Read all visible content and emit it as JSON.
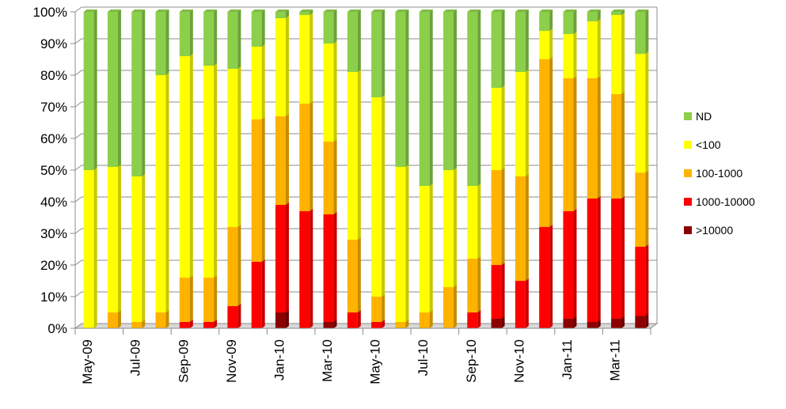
{
  "chart_data": {
    "type": "bar",
    "stacked": true,
    "normalized": true,
    "categories": [
      "May-09",
      "Jun-09",
      "Jul-09",
      "Aug-09",
      "Sep-09",
      "Oct-09",
      "Nov-09",
      "Dec-09",
      "Jan-10",
      "Feb-10",
      "Mar-10",
      "Apr-10",
      "May-10",
      "Jun-10",
      "Jul-10",
      "Aug-10",
      "Sep-10",
      "Oct-10",
      "Nov-10",
      "Dec-10",
      "Jan-11",
      "Feb-11",
      "Mar-11",
      "Apr-11"
    ],
    "x_tick_labels": [
      "May-09",
      "Jul-09",
      "Sep-09",
      "Nov-09",
      "Jan-10",
      "Mar-10",
      "May-10",
      "Jul-10",
      "Sep-10",
      "Nov-10",
      "Jan-11",
      "Mar-11"
    ],
    "y_tick_labels": [
      "0%",
      "10%",
      "20%",
      "30%",
      "40%",
      "50%",
      "60%",
      "70%",
      "80%",
      "90%",
      "100%"
    ],
    "ylim": [
      0,
      100
    ],
    "grid": true,
    "legend_position": "right",
    "series": [
      {
        "name": ">10000",
        "color": "#8B0000",
        "values": [
          0,
          0,
          0,
          0,
          0,
          0,
          0,
          0,
          5,
          0,
          2,
          0,
          0,
          0,
          0,
          0,
          0,
          3,
          0,
          0,
          3,
          2,
          3,
          5
        ]
      },
      {
        "name": "1000-10000",
        "color": "#FF0000",
        "values": [
          0,
          0,
          0,
          0,
          2,
          2,
          7,
          21,
          34,
          37,
          34,
          5,
          2,
          0,
          0,
          0,
          5,
          17,
          15,
          32,
          34,
          39,
          38,
          28
        ]
      },
      {
        "name": "100-1000",
        "color": "#FFB300",
        "values": [
          0,
          5,
          2,
          5,
          14,
          14,
          25,
          45,
          28,
          34,
          23,
          23,
          8,
          2,
          5,
          13,
          17,
          30,
          33,
          53,
          42,
          38,
          33,
          30
        ]
      },
      {
        "name": "<100",
        "color": "#FFFF00",
        "values": [
          50,
          46,
          46,
          75,
          70,
          67,
          50,
          23,
          31,
          28,
          31,
          53,
          63,
          49,
          40,
          37,
          23,
          26,
          33,
          9,
          14,
          18,
          25,
          48
        ]
      },
      {
        "name": "ND",
        "color": "#8CCF4A",
        "values": [
          50,
          49,
          52,
          20,
          14,
          17,
          18,
          11,
          2,
          1,
          10,
          19,
          27,
          49,
          55,
          50,
          55,
          24,
          19,
          6,
          7,
          3,
          1,
          17
        ]
      }
    ],
    "legend_order": [
      "ND",
      "<100",
      "100-1000",
      "1000-10000",
      ">10000"
    ]
  }
}
